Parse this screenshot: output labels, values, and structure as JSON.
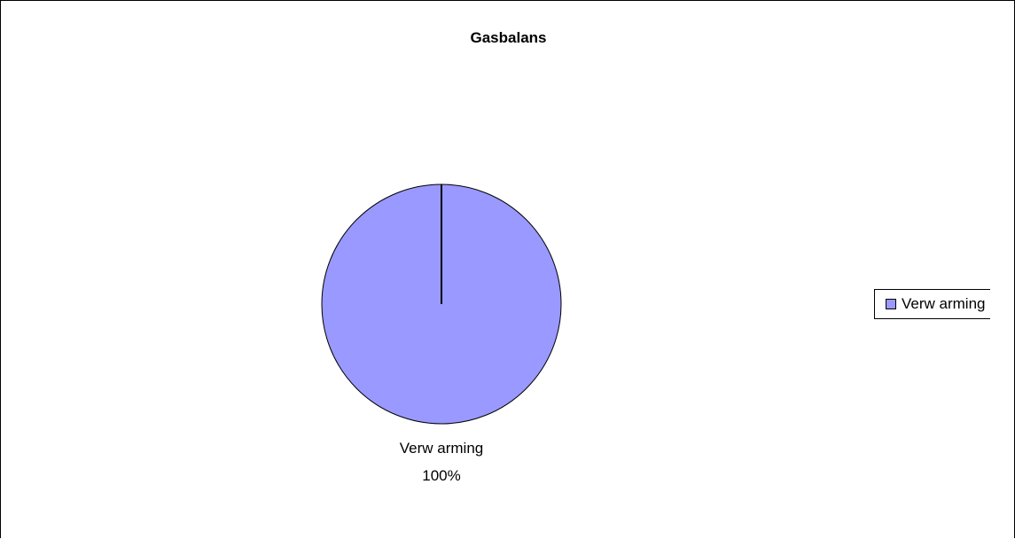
{
  "chart_data": {
    "type": "pie",
    "title": "Gasbalans",
    "slices": [
      {
        "label": "Verw arming",
        "value": 100,
        "percent_label": "100%",
        "color": "#9999ff"
      }
    ],
    "legend": {
      "position": "right",
      "entries": [
        "Verw arming"
      ]
    }
  }
}
